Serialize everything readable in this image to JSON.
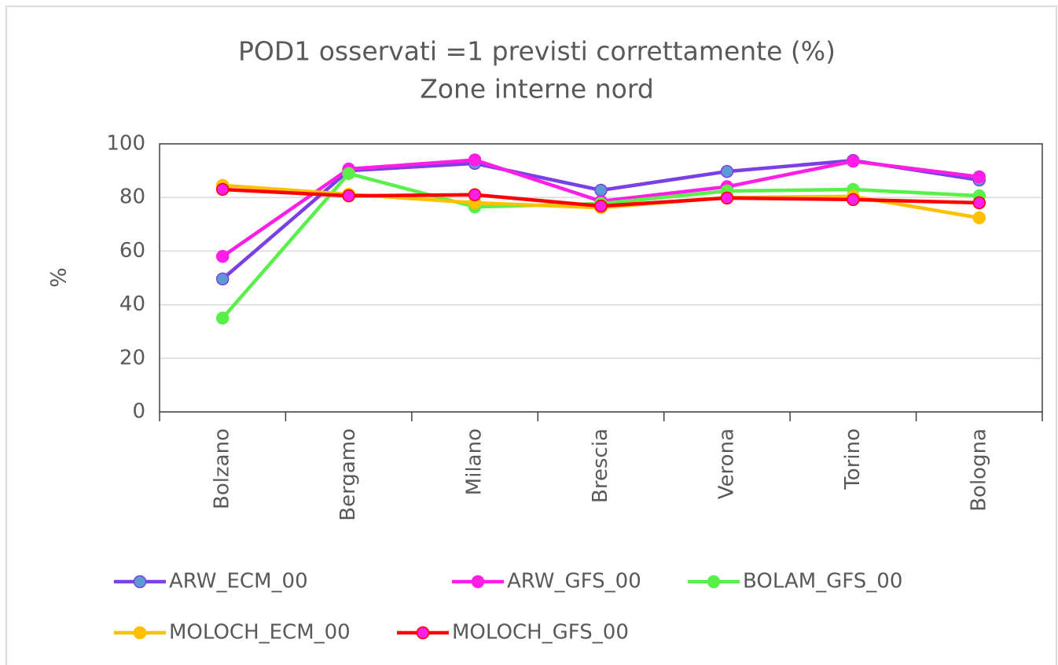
{
  "chart_data": {
    "type": "line",
    "title": "POD1 osservati =1 previsti correttamente (%)",
    "subtitle": "Zone interne nord",
    "y_label": "%",
    "categories": [
      "Bolzano",
      "Bergamo",
      "Milano",
      "Brescia",
      "Verona",
      "Torino",
      "Bologna"
    ],
    "series": [
      {
        "name": "ARW_ECM_00",
        "color": "#7b3fe6",
        "marker_color": "#5b9bd5",
        "values": [
          49.6,
          90,
          92.7,
          82.7,
          89.7,
          93.8,
          86.5
        ]
      },
      {
        "name": "ARW_GFS_00",
        "color": "#ff1ee6",
        "marker_color": "#ff1ee6",
        "values": [
          58,
          90.6,
          94,
          78.6,
          84,
          93.5,
          87.7
        ]
      },
      {
        "name": "BOLAM_GFS_00",
        "color": "#5af04a",
        "marker_color": "#5af04a",
        "values": [
          35,
          88.9,
          76.5,
          77.7,
          82.4,
          83,
          80.6
        ]
      },
      {
        "name": "MOLOCH_ECM_00",
        "color": "#ffc000",
        "marker_color": "#ffc000",
        "values": [
          84.5,
          81.2,
          78,
          76.2,
          80,
          80.4,
          72.4
        ]
      },
      {
        "name": "MOLOCH_GFS_00",
        "color": "#ff0000",
        "marker_color": "#ff1ee6",
        "values": [
          83,
          80.6,
          81,
          76.8,
          79.8,
          79.2,
          78
        ]
      }
    ],
    "ylim": [
      0,
      100
    ],
    "yticks": [
      0,
      20,
      40,
      60,
      80,
      100
    ],
    "grid": true,
    "legend": "bottom"
  }
}
